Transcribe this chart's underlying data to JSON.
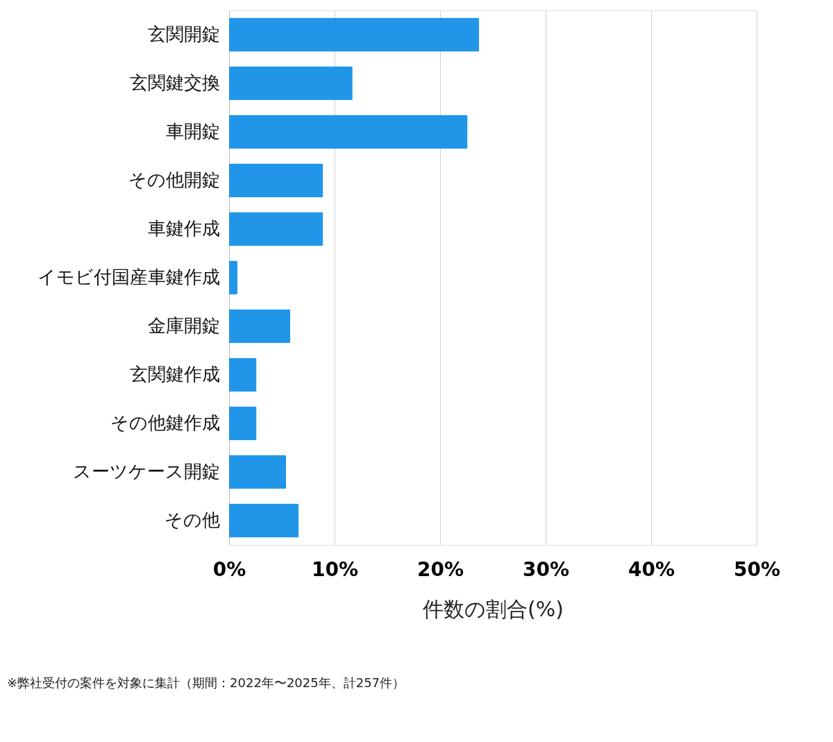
{
  "chart_data": {
    "type": "bar",
    "orientation": "horizontal",
    "categories": [
      "玄関開錠",
      "玄関鍵交換",
      "車開錠",
      "その他開錠",
      "車鍵作成",
      "イモビ付国産車鍵作成",
      "金庫開錠",
      "玄関鍵作成",
      "その他鍵作成",
      "スーツケース開錠",
      "その他"
    ],
    "values": [
      23.7,
      11.7,
      22.6,
      8.9,
      8.9,
      0.8,
      5.8,
      2.6,
      2.6,
      5.4,
      6.6
    ],
    "color": "#2196e8",
    "xlim": [
      0,
      50
    ],
    "xticks": [
      {
        "value": 0,
        "label": "0%"
      },
      {
        "value": 10,
        "label": "10%"
      },
      {
        "value": 20,
        "label": "20%"
      },
      {
        "value": 30,
        "label": "30%"
      },
      {
        "value": 40,
        "label": "40%"
      },
      {
        "value": 50,
        "label": "50%"
      }
    ],
    "xlabel": "件数の割合(%)",
    "grid": "x",
    "annotations": [
      "※弊社受付の案件を対象に集計（期間：2022年〜2025年、計257件）"
    ]
  }
}
